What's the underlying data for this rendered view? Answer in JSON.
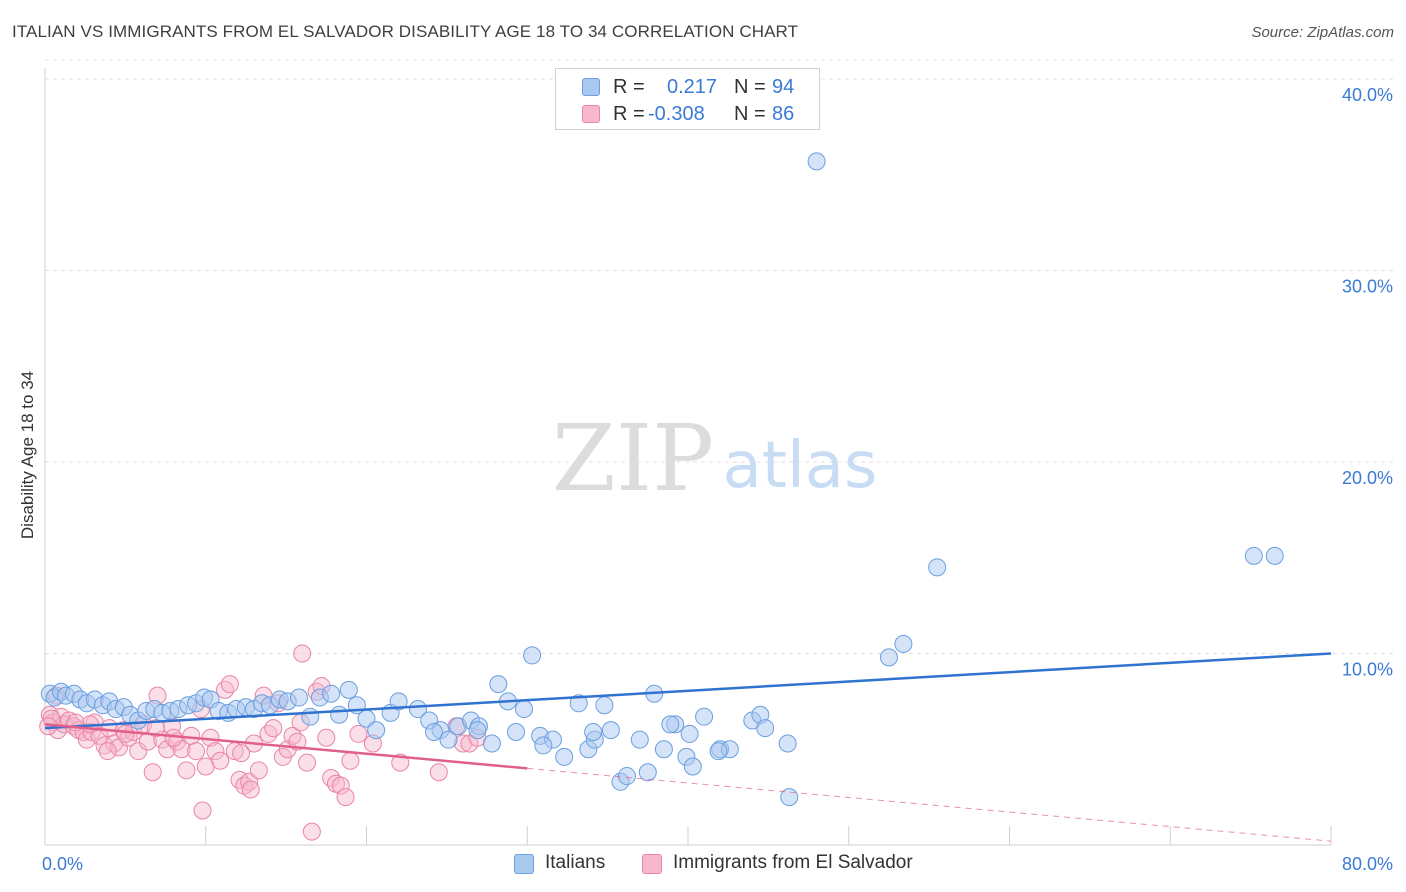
{
  "title": "ITALIAN VS IMMIGRANTS FROM EL SALVADOR DISABILITY AGE 18 TO 34 CORRELATION CHART",
  "source": "Source: ZipAtlas.com",
  "watermark": {
    "zip": "ZIP",
    "atlas": "atlas"
  },
  "legend": {
    "r_label": "R =",
    "n_label": "N =",
    "italians": {
      "r": "0.217",
      "n": "94"
    },
    "salvador": {
      "r": "-0.308",
      "n": "86"
    }
  },
  "bottom_legend": {
    "italians": "Italians",
    "salvador": "Immigrants from El Salvador"
  },
  "colors": {
    "italians_fill": "#a9c8f0",
    "italians_stroke": "#6a9fe0",
    "italians_line": "#2f72cf",
    "salvador_fill": "#f7b8cc",
    "salvador_stroke": "#ea85a6",
    "salvador_line": "#e0608a",
    "axis_text": "#3a7bd5",
    "grid": "#e2e2e2"
  },
  "chart_data": {
    "type": "scatter",
    "title": "ITALIAN VS IMMIGRANTS FROM EL SALVADOR DISABILITY AGE 18 TO 34 CORRELATION CHART",
    "xlabel": "",
    "ylabel": "Disability Age 18 to 34",
    "xlim": [
      0,
      80
    ],
    "ylim": [
      0,
      41
    ],
    "x_tick_labels": [
      {
        "value": 0,
        "label": "0.0%"
      },
      {
        "value": 80,
        "label": "80.0%"
      }
    ],
    "y_tick_labels": [
      {
        "value": 10,
        "label": "10.0%"
      },
      {
        "value": 20,
        "label": "20.0%"
      },
      {
        "value": 30,
        "label": "30.0%"
      },
      {
        "value": 40,
        "label": "40.0%"
      }
    ],
    "grid": true,
    "series": [
      {
        "name": "Italians",
        "r": 0.217,
        "n": 94,
        "trend": {
          "x": [
            0,
            80
          ],
          "y": [
            6.1,
            10.0
          ]
        },
        "points": [
          [
            0.3,
            7.9
          ],
          [
            0.6,
            7.7
          ],
          [
            1.0,
            8.0
          ],
          [
            1.3,
            7.8
          ],
          [
            1.8,
            7.9
          ],
          [
            2.2,
            7.6
          ],
          [
            2.6,
            7.4
          ],
          [
            3.1,
            7.6
          ],
          [
            3.6,
            7.3
          ],
          [
            4.0,
            7.5
          ],
          [
            4.4,
            7.1
          ],
          [
            4.9,
            7.2
          ],
          [
            5.3,
            6.8
          ],
          [
            5.8,
            6.5
          ],
          [
            6.3,
            7.0
          ],
          [
            6.8,
            7.1
          ],
          [
            7.3,
            6.9
          ],
          [
            7.8,
            7.0
          ],
          [
            8.3,
            7.1
          ],
          [
            8.9,
            7.3
          ],
          [
            9.4,
            7.4
          ],
          [
            9.9,
            7.7
          ],
          [
            10.3,
            7.6
          ],
          [
            10.8,
            7.0
          ],
          [
            11.4,
            6.9
          ],
          [
            11.9,
            7.1
          ],
          [
            12.5,
            7.2
          ],
          [
            13.0,
            7.1
          ],
          [
            13.5,
            7.4
          ],
          [
            14.0,
            7.3
          ],
          [
            14.6,
            7.6
          ],
          [
            15.1,
            7.5
          ],
          [
            15.8,
            7.7
          ],
          [
            16.5,
            6.7
          ],
          [
            17.1,
            7.7
          ],
          [
            17.8,
            7.9
          ],
          [
            18.3,
            6.8
          ],
          [
            18.9,
            8.1
          ],
          [
            19.4,
            7.3
          ],
          [
            20.0,
            6.6
          ],
          [
            20.6,
            6.0
          ],
          [
            21.5,
            6.9
          ],
          [
            22.0,
            7.5
          ],
          [
            23.2,
            7.1
          ],
          [
            23.9,
            6.5
          ],
          [
            24.6,
            6.0
          ],
          [
            25.1,
            5.5
          ],
          [
            25.7,
            6.2
          ],
          [
            26.5,
            6.5
          ],
          [
            27.0,
            6.2
          ],
          [
            27.8,
            5.3
          ],
          [
            28.2,
            8.4
          ],
          [
            28.8,
            7.5
          ],
          [
            29.3,
            5.9
          ],
          [
            29.8,
            7.1
          ],
          [
            30.3,
            9.9
          ],
          [
            30.8,
            5.7
          ],
          [
            31.6,
            5.5
          ],
          [
            32.3,
            4.6
          ],
          [
            33.2,
            7.4
          ],
          [
            33.8,
            5.0
          ],
          [
            34.2,
            5.5
          ],
          [
            34.8,
            7.3
          ],
          [
            35.2,
            6.0
          ],
          [
            35.8,
            3.3
          ],
          [
            36.2,
            3.6
          ],
          [
            37.0,
            5.5
          ],
          [
            37.5,
            3.8
          ],
          [
            37.9,
            7.9
          ],
          [
            38.5,
            5.0
          ],
          [
            39.2,
            6.3
          ],
          [
            39.9,
            4.6
          ],
          [
            40.3,
            4.1
          ],
          [
            41.0,
            6.7
          ],
          [
            42.0,
            5.0
          ],
          [
            42.6,
            5.0
          ],
          [
            44.0,
            6.5
          ],
          [
            44.5,
            6.8
          ],
          [
            46.2,
            5.3
          ],
          [
            46.3,
            2.5
          ],
          [
            48.0,
            35.7
          ],
          [
            52.5,
            9.8
          ],
          [
            53.4,
            10.5
          ],
          [
            55.5,
            14.5
          ],
          [
            75.2,
            15.1
          ],
          [
            76.5,
            15.1
          ],
          [
            44.8,
            6.1
          ],
          [
            41.9,
            4.9
          ],
          [
            40.1,
            5.8
          ],
          [
            38.9,
            6.3
          ],
          [
            34.1,
            5.9
          ],
          [
            31.0,
            5.2
          ],
          [
            26.9,
            6.0
          ],
          [
            24.2,
            5.9
          ]
        ]
      },
      {
        "name": "Immigrants from El Salvador",
        "r": -0.308,
        "n": 86,
        "trend": {
          "x": [
            0,
            30
          ],
          "y": [
            6.3,
            4.0
          ]
        },
        "trend_dashed": {
          "x": [
            30,
            80
          ],
          "y": [
            4.0,
            0.2
          ]
        },
        "points": [
          [
            0.3,
            6.8
          ],
          [
            0.5,
            6.4
          ],
          [
            0.8,
            6.0
          ],
          [
            1.0,
            6.7
          ],
          [
            1.2,
            6.3
          ],
          [
            1.5,
            6.5
          ],
          [
            1.8,
            6.2
          ],
          [
            2.1,
            6.0
          ],
          [
            2.4,
            5.9
          ],
          [
            2.6,
            5.5
          ],
          [
            2.9,
            5.9
          ],
          [
            3.1,
            6.4
          ],
          [
            3.4,
            5.7
          ],
          [
            3.7,
            5.2
          ],
          [
            4.0,
            6.1
          ],
          [
            4.3,
            5.3
          ],
          [
            4.6,
            5.1
          ],
          [
            4.9,
            6.0
          ],
          [
            5.2,
            5.6
          ],
          [
            5.5,
            5.9
          ],
          [
            5.8,
            4.9
          ],
          [
            6.1,
            6.3
          ],
          [
            6.4,
            5.4
          ],
          [
            6.7,
            3.8
          ],
          [
            7.0,
            7.8
          ],
          [
            7.3,
            5.5
          ],
          [
            7.6,
            5.0
          ],
          [
            7.9,
            6.2
          ],
          [
            8.2,
            5.4
          ],
          [
            8.5,
            5.0
          ],
          [
            8.8,
            3.9
          ],
          [
            9.1,
            5.7
          ],
          [
            9.4,
            4.9
          ],
          [
            9.7,
            7.1
          ],
          [
            10.0,
            4.1
          ],
          [
            10.3,
            5.6
          ],
          [
            10.6,
            4.9
          ],
          [
            10.9,
            4.4
          ],
          [
            11.2,
            8.1
          ],
          [
            11.5,
            8.4
          ],
          [
            11.8,
            4.9
          ],
          [
            12.1,
            3.4
          ],
          [
            12.4,
            3.1
          ],
          [
            12.7,
            3.3
          ],
          [
            13.0,
            5.3
          ],
          [
            13.3,
            3.9
          ],
          [
            13.6,
            7.8
          ],
          [
            13.9,
            5.8
          ],
          [
            14.2,
            6.1
          ],
          [
            14.5,
            7.4
          ],
          [
            14.8,
            4.6
          ],
          [
            15.1,
            5.0
          ],
          [
            15.4,
            5.7
          ],
          [
            15.7,
            5.4
          ],
          [
            16.0,
            10.0
          ],
          [
            16.3,
            4.3
          ],
          [
            16.6,
            0.7
          ],
          [
            16.9,
            8.0
          ],
          [
            17.2,
            8.3
          ],
          [
            17.5,
            5.6
          ],
          [
            17.8,
            3.5
          ],
          [
            18.1,
            3.2
          ],
          [
            18.4,
            3.1
          ],
          [
            18.7,
            2.5
          ],
          [
            19.0,
            4.4
          ],
          [
            19.5,
            5.8
          ],
          [
            20.4,
            5.3
          ],
          [
            22.1,
            4.3
          ],
          [
            24.5,
            3.8
          ],
          [
            25.6,
            6.2
          ],
          [
            26.0,
            5.3
          ],
          [
            26.4,
            5.3
          ],
          [
            26.9,
            5.6
          ],
          [
            9.8,
            1.8
          ],
          [
            12.8,
            2.9
          ],
          [
            15.9,
            6.4
          ],
          [
            8.0,
            5.6
          ],
          [
            6.9,
            6.1
          ],
          [
            5.0,
            5.8
          ],
          [
            3.9,
            4.9
          ],
          [
            2.8,
            6.3
          ],
          [
            1.9,
            6.4
          ],
          [
            0.7,
            7.8
          ],
          [
            0.4,
            6.6
          ],
          [
            0.2,
            6.2
          ],
          [
            12.2,
            4.8
          ]
        ]
      }
    ]
  }
}
